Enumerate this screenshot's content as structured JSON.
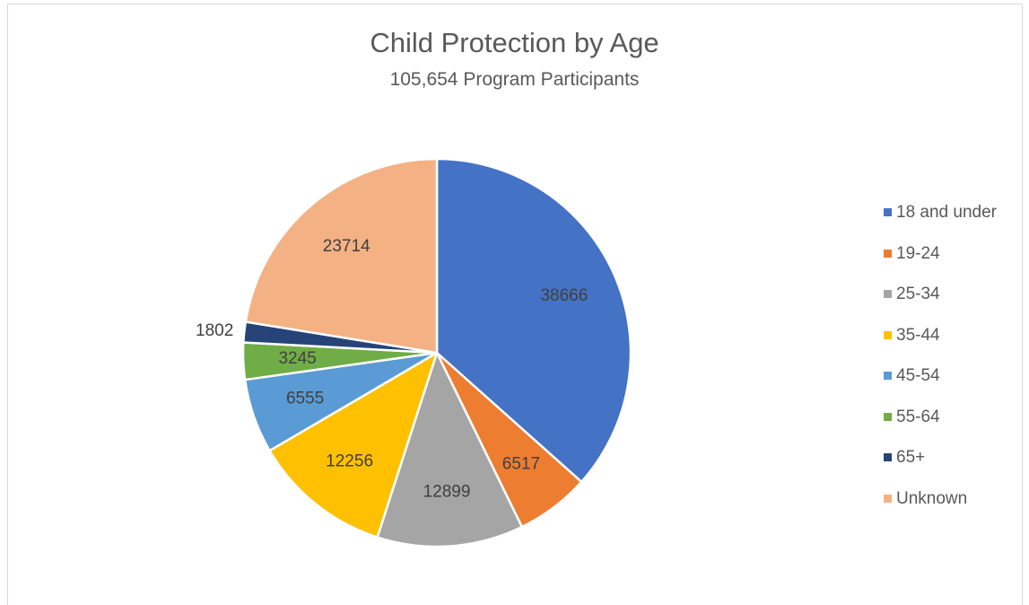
{
  "chart_data": {
    "type": "pie",
    "title": "Child Protection by Age",
    "subtitle": "105,654 Program Participants",
    "categories": [
      "18 and under",
      "19-24",
      "25-34",
      "35-44",
      "45-54",
      "55-64",
      "65+",
      "Unknown"
    ],
    "values": [
      38666,
      6517,
      12899,
      12256,
      6555,
      3245,
      1802,
      23714
    ],
    "colors": [
      "#4472c4",
      "#ed7d31",
      "#a5a5a5",
      "#ffc000",
      "#5b9bd5",
      "#70ad47",
      "#264478",
      "#f4b183"
    ],
    "legend_position": "right"
  }
}
